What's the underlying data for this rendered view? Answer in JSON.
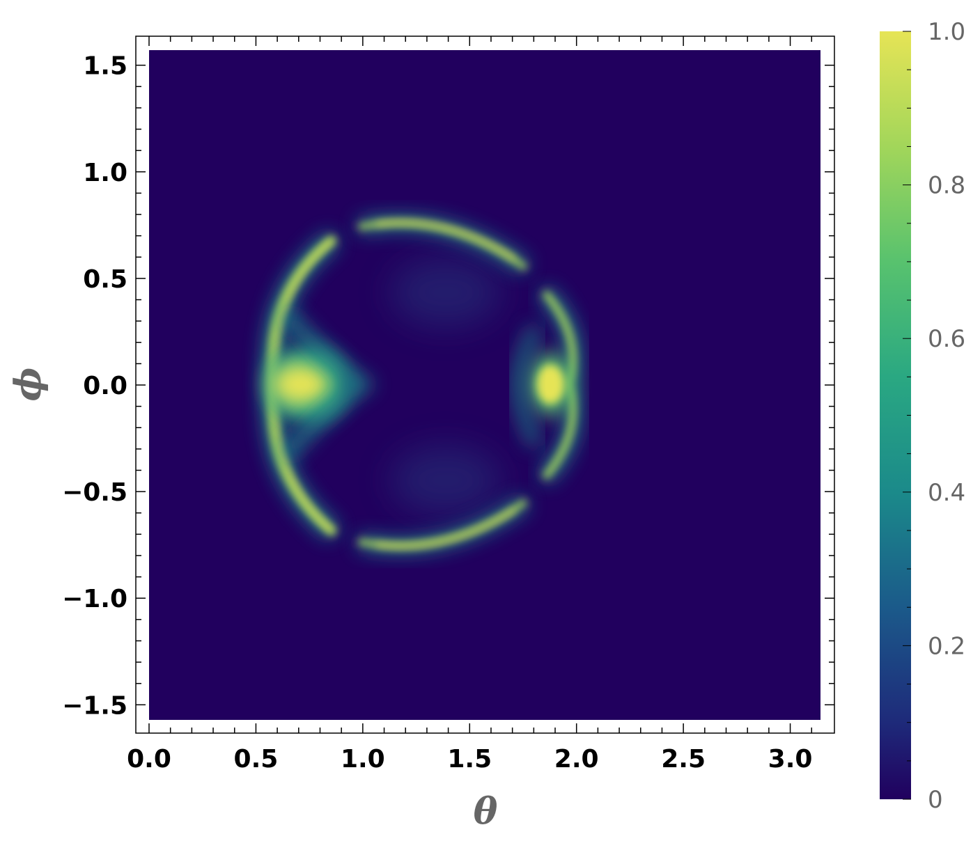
{
  "chart_data": {
    "type": "heatmap",
    "title": "",
    "xlabel": "θ",
    "ylabel": "ϕ",
    "xlim": [
      0,
      3.14159
    ],
    "ylim": [
      -1.5708,
      1.5708
    ],
    "x_ticks": [
      "0.0",
      "0.5",
      "1.0",
      "1.5",
      "2.0",
      "2.5",
      "3.0"
    ],
    "y_ticks": [
      "1.5",
      "1.0",
      "0.5",
      "0.0",
      "−0.5",
      "−1.0",
      "−1.5"
    ],
    "colorbar": {
      "range": [
        0,
        1
      ],
      "ticks": [
        "1.0",
        "0.8",
        "0.6",
        "0.4",
        "0.2",
        "0"
      ],
      "colormap": "viridis"
    },
    "features": [
      {
        "shape": "arc",
        "theta_range": [
          0.55,
          0.9
        ],
        "phi_range": [
          -0.72,
          0.72
        ],
        "peak": [
          0.72,
          0.0
        ],
        "value": 1.0
      },
      {
        "shape": "arc",
        "theta_range": [
          1.75,
          1.97
        ],
        "phi_range": [
          -0.45,
          0.45
        ],
        "peak": [
          1.9,
          0.0
        ],
        "value": 1.0
      },
      {
        "shape": "arc",
        "theta_range": [
          0.95,
          1.75
        ],
        "phi_range": [
          0.55,
          0.76
        ],
        "peak": [
          1.25,
          0.75
        ],
        "value": 0.95
      },
      {
        "shape": "arc",
        "theta_range": [
          0.95,
          1.75
        ],
        "phi_range": [
          -0.76,
          -0.55
        ],
        "peak": [
          1.25,
          -0.75
        ],
        "value": 0.95
      }
    ],
    "grid": false,
    "legend": "colorbar-right"
  }
}
